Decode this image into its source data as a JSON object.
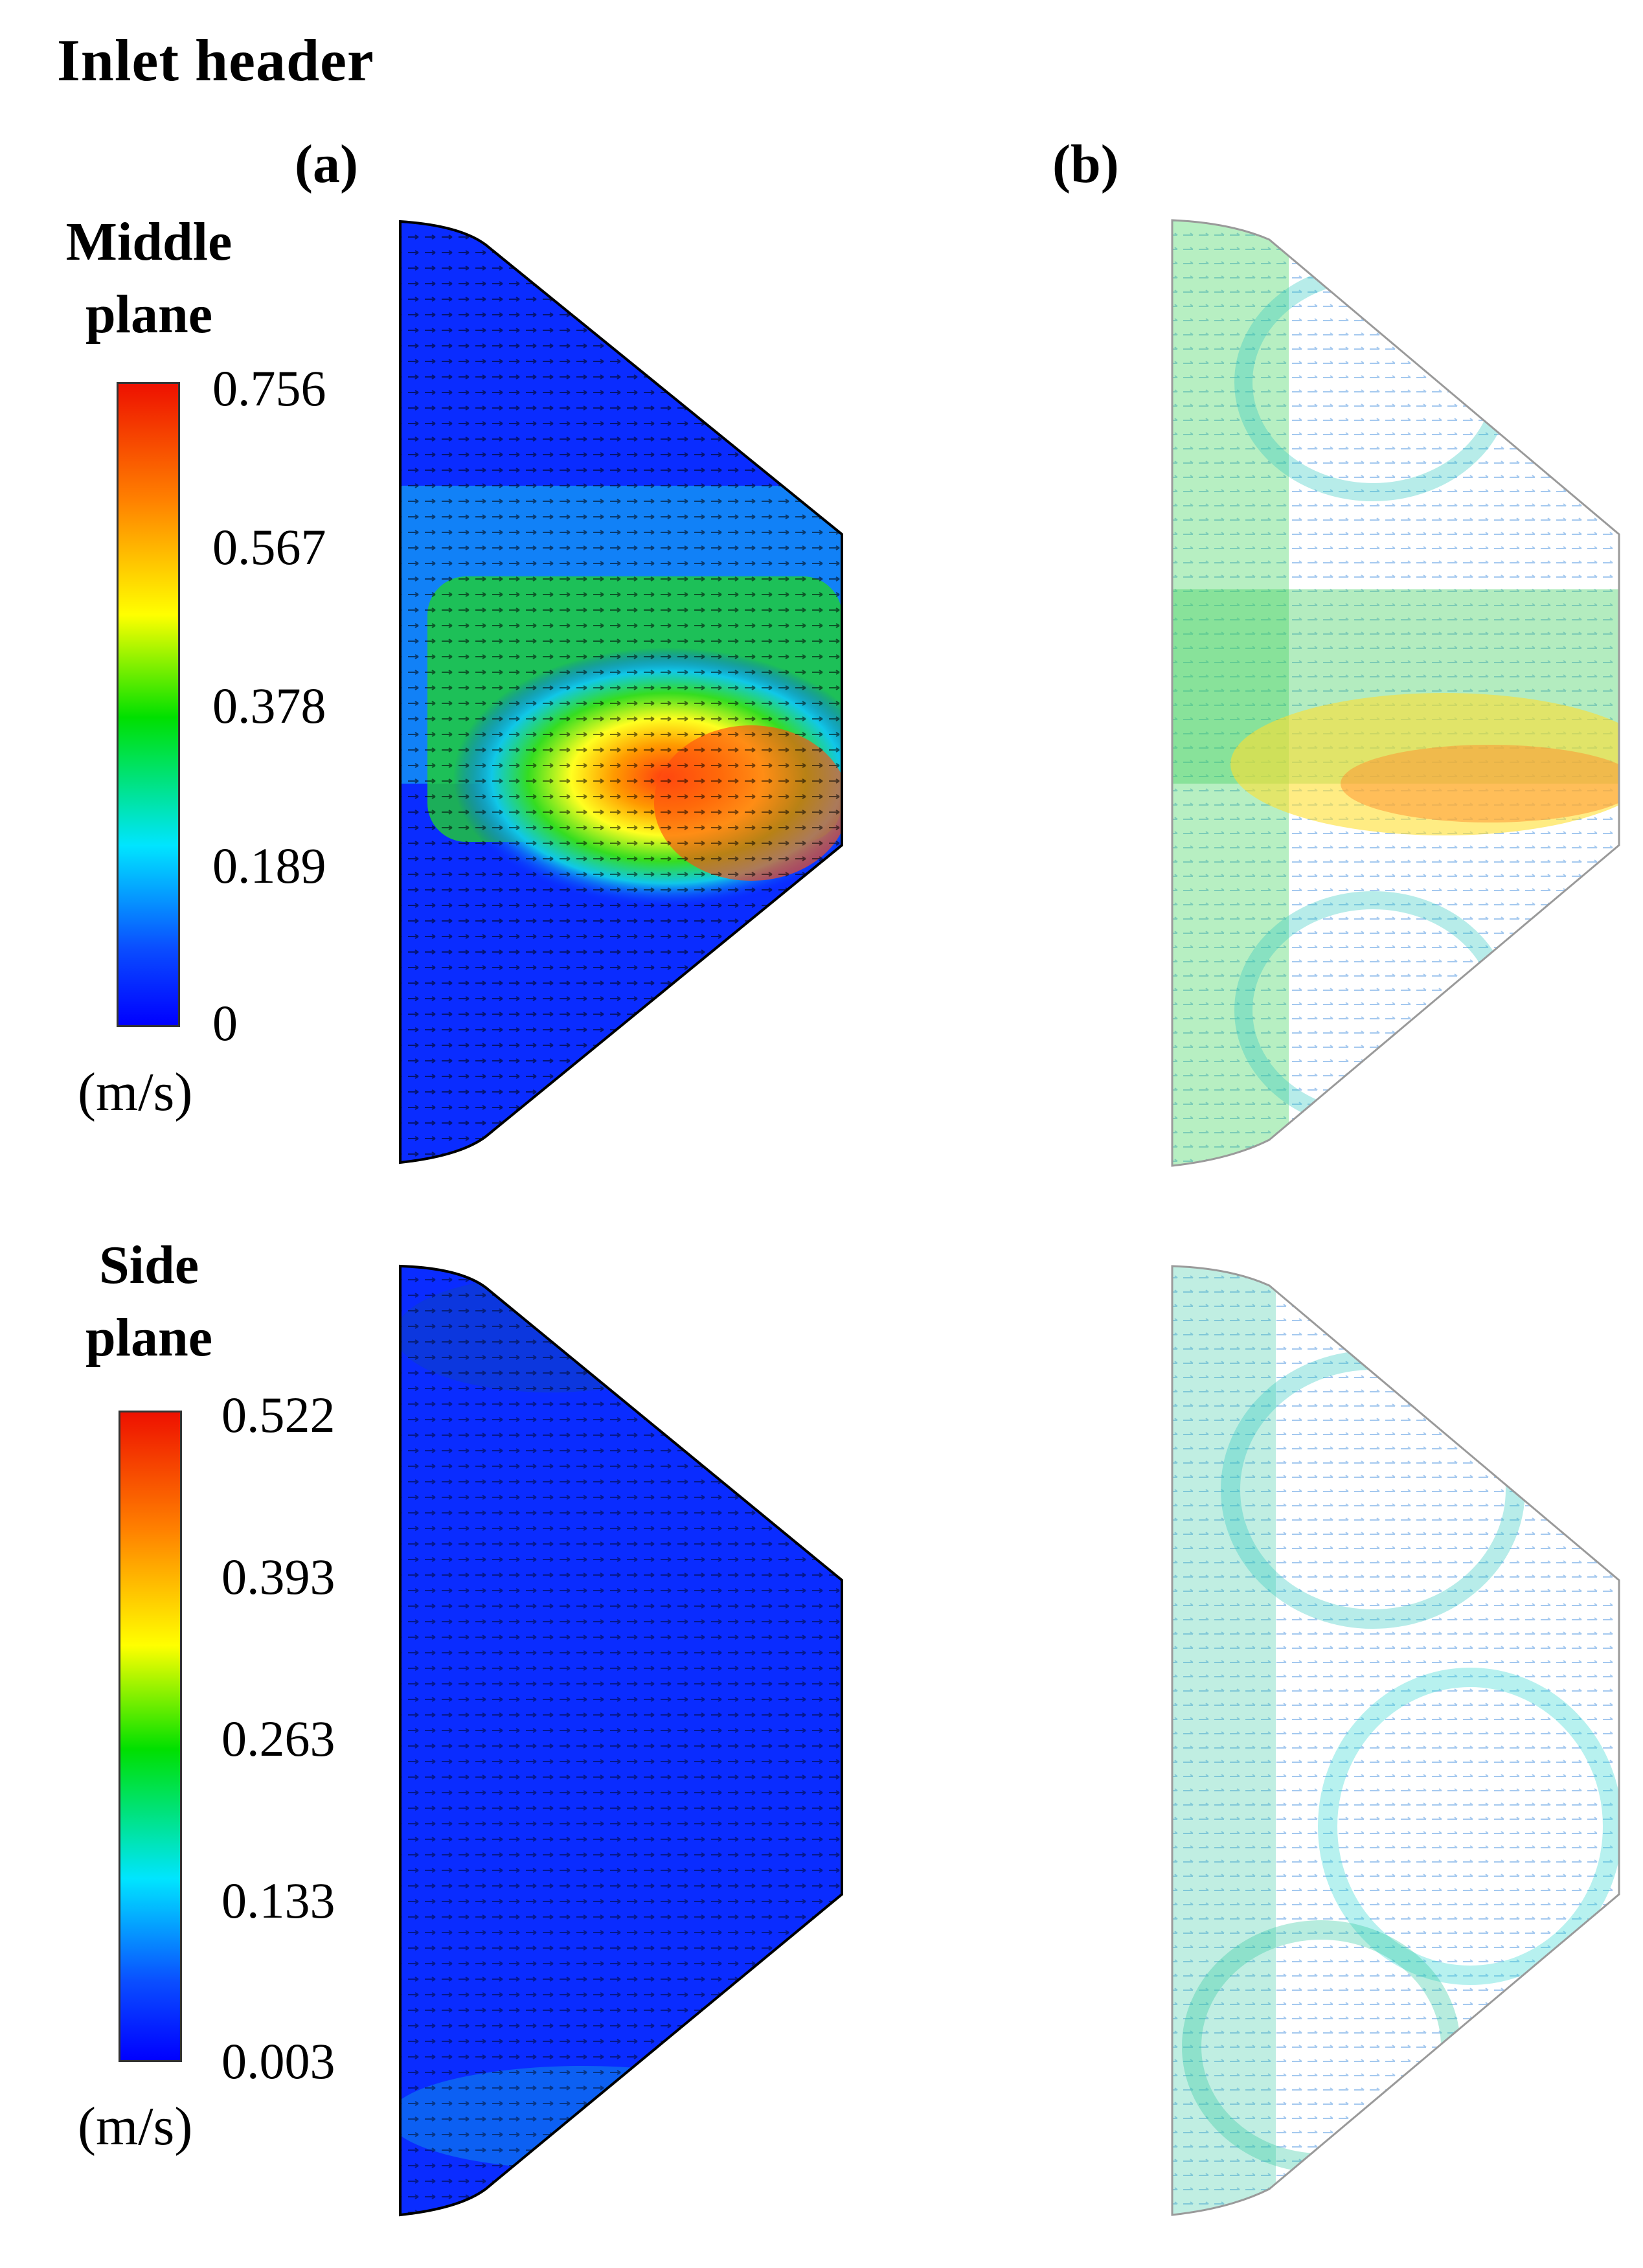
{
  "title": "Inlet header",
  "panel_labels": {
    "a": "(a)",
    "b": "(b)"
  },
  "middle_plane": {
    "title_line1": "Middle",
    "title_line2": "plane",
    "colorbar": {
      "ticks": [
        "0.756",
        "0.567",
        "0.378",
        "0.189",
        "0"
      ],
      "unit": "(m/s)",
      "colors": [
        "#0000ff",
        "#00e5ff",
        "#00e000",
        "#ffff00",
        "#ff8000",
        "#ee1100"
      ]
    }
  },
  "side_plane": {
    "title_line1": "Side",
    "title_line2": "plane",
    "colorbar": {
      "ticks": [
        "0.522",
        "0.393",
        "0.263",
        "0.133",
        "0.003"
      ],
      "unit": "(m/s)",
      "colors": [
        "#0000ff",
        "#00e5ff",
        "#00e000",
        "#ffff00",
        "#ff8000",
        "#ee1100"
      ]
    }
  }
}
